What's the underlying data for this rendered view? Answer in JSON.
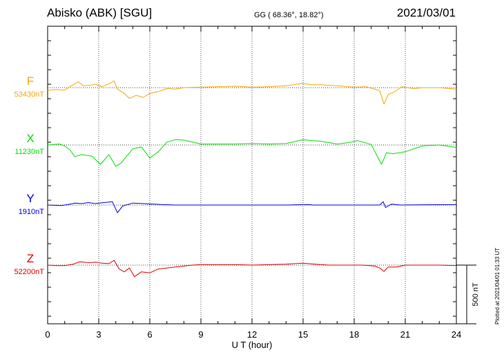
{
  "header": {
    "station": "Abisko (ABK)  [SGU]",
    "coords": "GG ( 68.36°,  18.82°)",
    "date": "2021/03/01"
  },
  "plotted_note": "Plotted at 2021/04/01 01:33 UT",
  "colors": {
    "F": "#f5a800",
    "X": "#00d400",
    "Y": "#0000dd",
    "Z": "#e00000"
  },
  "chart_data": {
    "type": "line",
    "xlabel": "U T (hour)",
    "xlim": [
      0,
      24
    ],
    "x_ticks": [
      "0",
      "3",
      "6",
      "9",
      "12",
      "15",
      "18",
      "21",
      "24"
    ],
    "scale_bar_label": "500 nT",
    "scale_bar_nT": 500,
    "series": [
      {
        "name": "F",
        "baseline_label": "53430nT",
        "color": "#f5a800",
        "points": [
          [
            0,
            26
          ],
          [
            0.5,
            20
          ],
          [
            1,
            25
          ],
          [
            1.4,
            -20
          ],
          [
            1.8,
            -60
          ],
          [
            2.1,
            -20
          ],
          [
            2.5,
            -25
          ],
          [
            2.8,
            -35
          ],
          [
            3.2,
            -10
          ],
          [
            3.6,
            -40
          ],
          [
            3.9,
            -70
          ],
          [
            4.1,
            15
          ],
          [
            4.5,
            60
          ],
          [
            4.8,
            110
          ],
          [
            5.2,
            80
          ],
          [
            5.6,
            100
          ],
          [
            6.0,
            60
          ],
          [
            6.5,
            40
          ],
          [
            7.0,
            10
          ],
          [
            7.5,
            15
          ],
          [
            8.0,
            0
          ],
          [
            9,
            -5
          ],
          [
            10,
            -10
          ],
          [
            11,
            -15
          ],
          [
            12,
            -5
          ],
          [
            13,
            -10
          ],
          [
            14,
            -20
          ],
          [
            15,
            -45
          ],
          [
            15.5,
            -30
          ],
          [
            16,
            -30
          ],
          [
            17,
            -20
          ],
          [
            18,
            -5
          ],
          [
            18.7,
            -10
          ],
          [
            19.2,
            15
          ],
          [
            19.5,
            30
          ],
          [
            19.75,
            170
          ],
          [
            20.0,
            70
          ],
          [
            20.4,
            40
          ],
          [
            20.8,
            -10
          ],
          [
            21.5,
            10
          ],
          [
            22,
            0
          ],
          [
            23,
            0
          ],
          [
            24,
            15
          ]
        ]
      },
      {
        "name": "X",
        "baseline_label": "11230nT",
        "color": "#00e000",
        "points": [
          [
            0,
            0
          ],
          [
            0.7,
            -10
          ],
          [
            1.0,
            10
          ],
          [
            1.3,
            50
          ],
          [
            1.6,
            120
          ],
          [
            2.0,
            100
          ],
          [
            2.6,
            115
          ],
          [
            3.1,
            200
          ],
          [
            3.6,
            100
          ],
          [
            4.0,
            220
          ],
          [
            4.3,
            190
          ],
          [
            5.0,
            40
          ],
          [
            5.5,
            20
          ],
          [
            6.0,
            135
          ],
          [
            6.5,
            70
          ],
          [
            7.0,
            -30
          ],
          [
            7.5,
            -55
          ],
          [
            8.0,
            -50
          ],
          [
            9,
            -10
          ],
          [
            10,
            -10
          ],
          [
            11,
            -10
          ],
          [
            12,
            -15
          ],
          [
            13,
            -10
          ],
          [
            14,
            -15
          ],
          [
            15,
            -55
          ],
          [
            15.5,
            -45
          ],
          [
            16,
            -40
          ],
          [
            17,
            -10
          ],
          [
            17.7,
            -25
          ],
          [
            18.2,
            -45
          ],
          [
            19,
            -5
          ],
          [
            19.6,
            200
          ],
          [
            19.9,
            80
          ],
          [
            20.3,
            90
          ],
          [
            21,
            70
          ],
          [
            22,
            10
          ],
          [
            23,
            0
          ],
          [
            24,
            25
          ]
        ]
      },
      {
        "name": "Y",
        "baseline_label": "1910nT",
        "color": "#0000dd",
        "points": [
          [
            0,
            0
          ],
          [
            0.8,
            5
          ],
          [
            1.2,
            -5
          ],
          [
            1.6,
            -20
          ],
          [
            2.0,
            -15
          ],
          [
            2.4,
            -25
          ],
          [
            2.8,
            -15
          ],
          [
            3.3,
            -25
          ],
          [
            3.8,
            -35
          ],
          [
            4.1,
            80
          ],
          [
            4.4,
            10
          ],
          [
            5.0,
            -20
          ],
          [
            5.6,
            -15
          ],
          [
            6.2,
            -10
          ],
          [
            6.7,
            -5
          ],
          [
            7.5,
            0
          ],
          [
            8.5,
            0
          ],
          [
            10,
            0
          ],
          [
            12,
            0
          ],
          [
            14,
            0
          ],
          [
            15.3,
            -5
          ],
          [
            15.6,
            0
          ],
          [
            17,
            0
          ],
          [
            18.5,
            0
          ],
          [
            19.5,
            0
          ],
          [
            19.7,
            -35
          ],
          [
            19.85,
            25
          ],
          [
            20.2,
            -10
          ],
          [
            20.7,
            0
          ],
          [
            22,
            -3
          ],
          [
            24,
            -5
          ]
        ]
      },
      {
        "name": "Z",
        "baseline_label": "52200nT",
        "color": "#e00000",
        "points": [
          [
            0,
            0
          ],
          [
            0.5,
            5
          ],
          [
            1.0,
            5
          ],
          [
            1.5,
            -10
          ],
          [
            1.9,
            -35
          ],
          [
            2.4,
            -25
          ],
          [
            2.8,
            -30
          ],
          [
            3.2,
            -20
          ],
          [
            3.6,
            -15
          ],
          [
            3.9,
            -50
          ],
          [
            4.2,
            40
          ],
          [
            4.5,
            70
          ],
          [
            4.8,
            30
          ],
          [
            5.1,
            120
          ],
          [
            5.5,
            70
          ],
          [
            6.0,
            80
          ],
          [
            6.5,
            40
          ],
          [
            7.0,
            30
          ],
          [
            7.5,
            20
          ],
          [
            8.5,
            0
          ],
          [
            9,
            -5
          ],
          [
            10,
            -5
          ],
          [
            11,
            -5
          ],
          [
            12,
            0
          ],
          [
            13,
            -5
          ],
          [
            14,
            -10
          ],
          [
            15,
            -20
          ],
          [
            15.7,
            -10
          ],
          [
            16.5,
            0
          ],
          [
            17.5,
            0
          ],
          [
            18.5,
            0
          ],
          [
            19.2,
            10
          ],
          [
            19.5,
            30
          ],
          [
            19.75,
            65
          ],
          [
            20.0,
            20
          ],
          [
            20.5,
            20
          ],
          [
            21,
            0
          ],
          [
            22,
            0
          ],
          [
            23,
            0
          ],
          [
            24,
            5
          ]
        ]
      }
    ]
  }
}
